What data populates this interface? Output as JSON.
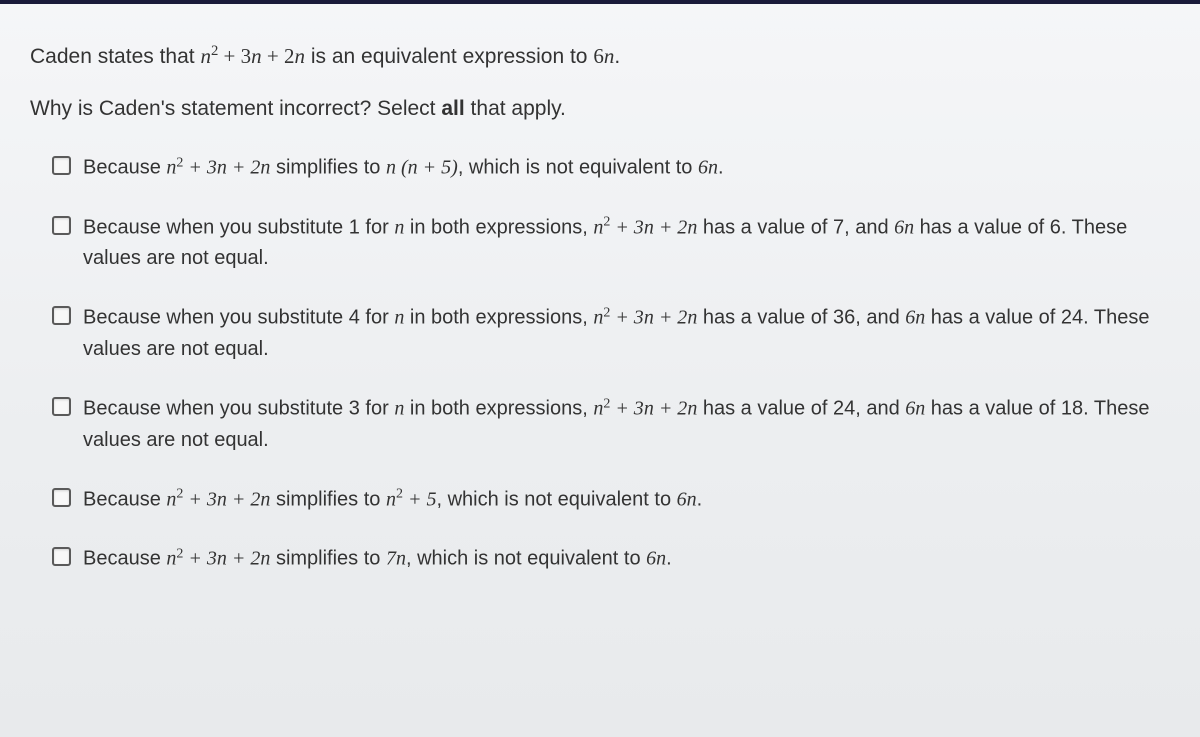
{
  "stem_before_expr1": "Caden states that ",
  "expr_poly": "n² + 3n + 2n",
  "stem_mid": " is an equivalent expression to ",
  "expr_6n": "6n",
  "period": ".",
  "prompt_a": "Why is Caden's statement incorrect? Select ",
  "prompt_bold": "all",
  "prompt_b": " that apply.",
  "options": [
    {
      "id": "opt-a",
      "segments": [
        {
          "t": "Because ",
          "m": false
        },
        {
          "t": "n",
          "m": true
        },
        {
          "t": "2",
          "sup": true
        },
        {
          "t": " + 3",
          "m": true,
          "num": true
        },
        {
          "t": "n",
          "m": true
        },
        {
          "t": " + 2",
          "m": true,
          "num": true
        },
        {
          "t": "n",
          "m": true
        },
        {
          "t": " simplifies to ",
          "m": false
        },
        {
          "t": "n ",
          "m": true
        },
        {
          "t": "(",
          "m": true,
          "num": true
        },
        {
          "t": "n",
          "m": true
        },
        {
          "t": " + 5)",
          "m": true,
          "num": true
        },
        {
          "t": ", which is not equivalent to ",
          "m": false
        },
        {
          "t": "6",
          "m": true,
          "num": true
        },
        {
          "t": "n",
          "m": true
        },
        {
          "t": ".",
          "m": false
        }
      ]
    },
    {
      "id": "opt-b",
      "segments": [
        {
          "t": "Because when you substitute 1 for ",
          "m": false
        },
        {
          "t": "n",
          "m": true
        },
        {
          "t": " in both expressions, ",
          "m": false
        },
        {
          "t": "n",
          "m": true
        },
        {
          "t": "2",
          "sup": true
        },
        {
          "t": " + 3",
          "m": true,
          "num": true
        },
        {
          "t": "n",
          "m": true
        },
        {
          "t": " + 2",
          "m": true,
          "num": true
        },
        {
          "t": "n",
          "m": true
        },
        {
          "t": " has a value of 7, and ",
          "m": false
        },
        {
          "t": "6",
          "m": true,
          "num": true
        },
        {
          "t": "n",
          "m": true
        },
        {
          "t": " has a value of 6. These values are not equal.",
          "m": false
        }
      ]
    },
    {
      "id": "opt-c",
      "segments": [
        {
          "t": "Because when you substitute 4 for ",
          "m": false
        },
        {
          "t": "n",
          "m": true
        },
        {
          "t": " in both expressions, ",
          "m": false
        },
        {
          "t": "n",
          "m": true
        },
        {
          "t": "2",
          "sup": true
        },
        {
          "t": " + 3",
          "m": true,
          "num": true
        },
        {
          "t": "n",
          "m": true
        },
        {
          "t": " + 2",
          "m": true,
          "num": true
        },
        {
          "t": "n",
          "m": true
        },
        {
          "t": " has a value of 36, and ",
          "m": false
        },
        {
          "t": "6",
          "m": true,
          "num": true
        },
        {
          "t": "n",
          "m": true
        },
        {
          "t": " has a value of 24. These values are not equal.",
          "m": false
        }
      ]
    },
    {
      "id": "opt-d",
      "segments": [
        {
          "t": "Because when you substitute 3 for ",
          "m": false
        },
        {
          "t": "n",
          "m": true
        },
        {
          "t": " in both expressions, ",
          "m": false
        },
        {
          "t": "n",
          "m": true
        },
        {
          "t": "2",
          "sup": true
        },
        {
          "t": " + 3",
          "m": true,
          "num": true
        },
        {
          "t": "n",
          "m": true
        },
        {
          "t": " + 2",
          "m": true,
          "num": true
        },
        {
          "t": "n",
          "m": true
        },
        {
          "t": " has a value of 24, and ",
          "m": false
        },
        {
          "t": "6",
          "m": true,
          "num": true
        },
        {
          "t": "n",
          "m": true
        },
        {
          "t": " has a value of 18. These values are not equal.",
          "m": false
        }
      ]
    },
    {
      "id": "opt-e",
      "segments": [
        {
          "t": "Because ",
          "m": false
        },
        {
          "t": "n",
          "m": true
        },
        {
          "t": "2",
          "sup": true
        },
        {
          "t": " + 3",
          "m": true,
          "num": true
        },
        {
          "t": "n",
          "m": true
        },
        {
          "t": " + 2",
          "m": true,
          "num": true
        },
        {
          "t": "n",
          "m": true
        },
        {
          "t": " simplifies to ",
          "m": false
        },
        {
          "t": "n",
          "m": true
        },
        {
          "t": "2",
          "sup": true
        },
        {
          "t": " + 5",
          "m": true,
          "num": true
        },
        {
          "t": ", which is not equivalent to ",
          "m": false
        },
        {
          "t": "6",
          "m": true,
          "num": true
        },
        {
          "t": "n",
          "m": true
        },
        {
          "t": ".",
          "m": false
        }
      ]
    },
    {
      "id": "opt-f",
      "segments": [
        {
          "t": "Because ",
          "m": false
        },
        {
          "t": "n",
          "m": true
        },
        {
          "t": "2",
          "sup": true
        },
        {
          "t": " + 3",
          "m": true,
          "num": true
        },
        {
          "t": "n",
          "m": true
        },
        {
          "t": " + 2",
          "m": true,
          "num": true
        },
        {
          "t": "n",
          "m": true
        },
        {
          "t": " simplifies to ",
          "m": false
        },
        {
          "t": "7",
          "m": true,
          "num": true
        },
        {
          "t": "n",
          "m": true
        },
        {
          "t": ", which is not equivalent to ",
          "m": false
        },
        {
          "t": "6",
          "m": true,
          "num": true
        },
        {
          "t": "n",
          "m": true
        },
        {
          "t": ".",
          "m": false
        }
      ]
    }
  ]
}
